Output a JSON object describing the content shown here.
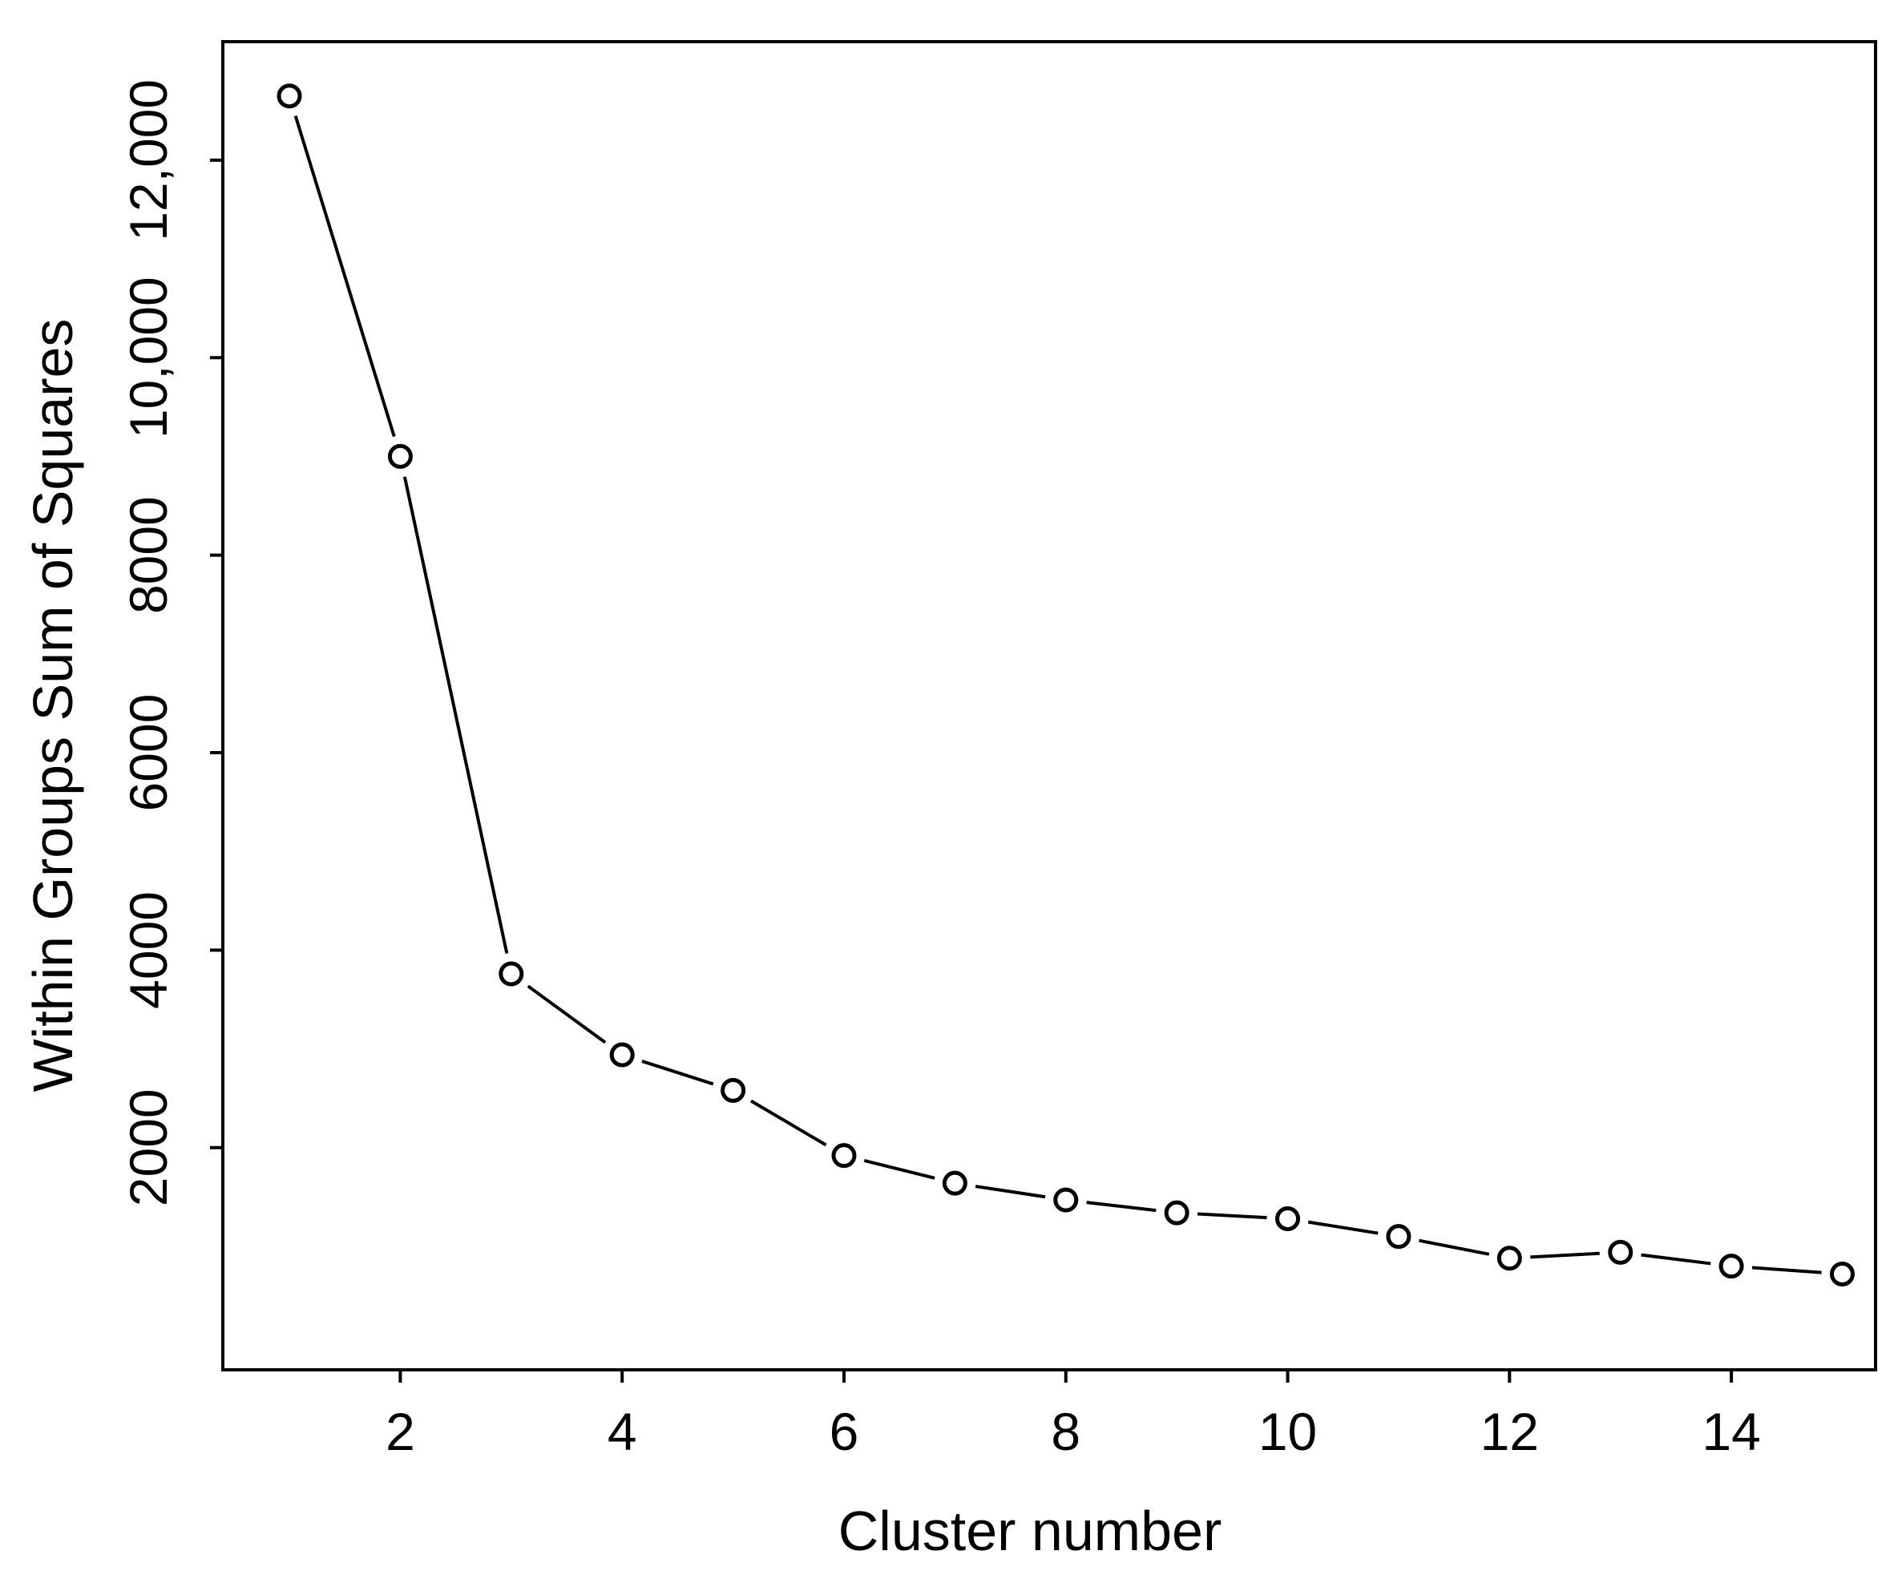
{
  "chart_data": {
    "type": "line",
    "title": "",
    "xlabel": "Cluster number",
    "ylabel": "Within Groups Sum of Squares",
    "xlim": [
      0.4,
      15.3
    ],
    "ylim": [
      -250,
      13200
    ],
    "x_ticks": [
      2,
      4,
      6,
      8,
      10,
      12,
      14
    ],
    "x_tick_labels": [
      "2",
      "4",
      "6",
      "8",
      "10",
      "12",
      "14"
    ],
    "y_ticks": [
      2000,
      4000,
      6000,
      8000,
      10000,
      12000
    ],
    "y_tick_labels": [
      "2000",
      "4000",
      "6000",
      "8000",
      "10,000",
      "12,000"
    ],
    "grid": false,
    "legend": "none",
    "line_style": "dashed",
    "marker": "open-circle",
    "color": "#000000",
    "series": [
      {
        "x": [
          1,
          2,
          3,
          4,
          5,
          6,
          7,
          8,
          9,
          10,
          11,
          12,
          13,
          14,
          15
        ],
        "y": [
          12650,
          9000,
          3760,
          2940,
          2580,
          1920,
          1640,
          1470,
          1340,
          1280,
          1100,
          880,
          940,
          800,
          720
        ]
      }
    ]
  }
}
